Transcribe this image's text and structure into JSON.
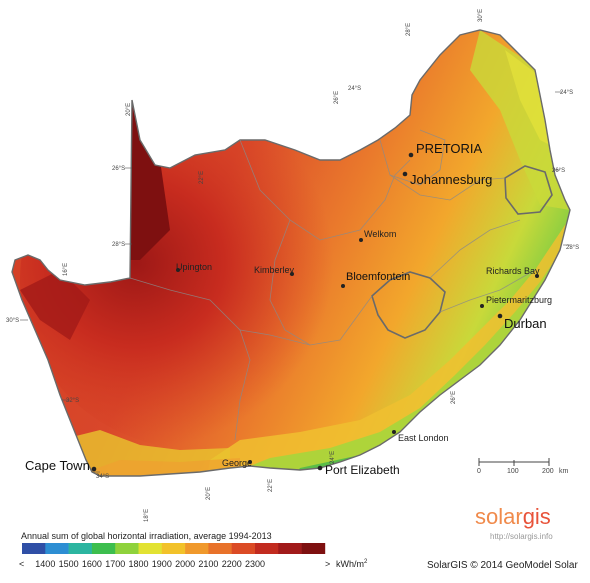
{
  "map": {
    "cities": [
      {
        "name": "PRETORIA",
        "size": "big"
      },
      {
        "name": "Johannesburg",
        "size": "big"
      },
      {
        "name": "Welkom",
        "size": "small"
      },
      {
        "name": "Bloemfontein",
        "size": "big"
      },
      {
        "name": "Kimberley",
        "size": "small"
      },
      {
        "name": "Upington",
        "size": "small"
      },
      {
        "name": "Richards Bay",
        "size": "small"
      },
      {
        "name": "Pietermaritzburg",
        "size": "small"
      },
      {
        "name": "Durban",
        "size": "big"
      },
      {
        "name": "East London",
        "size": "small"
      },
      {
        "name": "Port Elizabeth",
        "size": "big"
      },
      {
        "name": "George",
        "size": "small"
      },
      {
        "name": "Cape Town",
        "size": "big"
      }
    ],
    "latitude_labels": [
      "24°S",
      "26°S",
      "28°S",
      "30°S",
      "32°S",
      "34°S",
      "24°S",
      "26°S",
      "28°S"
    ],
    "longitude_labels": [
      "30°E",
      "28°E",
      "26°E",
      "20°E",
      "22°E",
      "16°E",
      "18°E",
      "20°E",
      "22°E",
      "24°E",
      "26°E"
    ],
    "scale_bar": {
      "ticks": [
        "0",
        "100",
        "200"
      ],
      "unit": "km"
    }
  },
  "legend": {
    "title": "Annual sum of global horizontal irradiation, average 1994-2013",
    "less_than": "<",
    "greater_than": ">",
    "ticks": [
      "1400",
      "1500",
      "1600",
      "1700",
      "1800",
      "1900",
      "2000",
      "2100",
      "2200",
      "2300"
    ],
    "unit": "kWh/m",
    "unit_sup": "2",
    "colors": [
      "#2f4fa6",
      "#2d8ed3",
      "#2cb5a0",
      "#3dbe4e",
      "#8fd23c",
      "#e2e232",
      "#f2c22a",
      "#f0992c",
      "#e8722a",
      "#db4b25",
      "#c22b1f",
      "#a11a1a",
      "#7e1010"
    ]
  },
  "branding": {
    "logo_a": "solar",
    "logo_b": "gis",
    "url": "http://solargis.info",
    "copyright": "SolarGIS © 2014 GeoModel Solar"
  }
}
